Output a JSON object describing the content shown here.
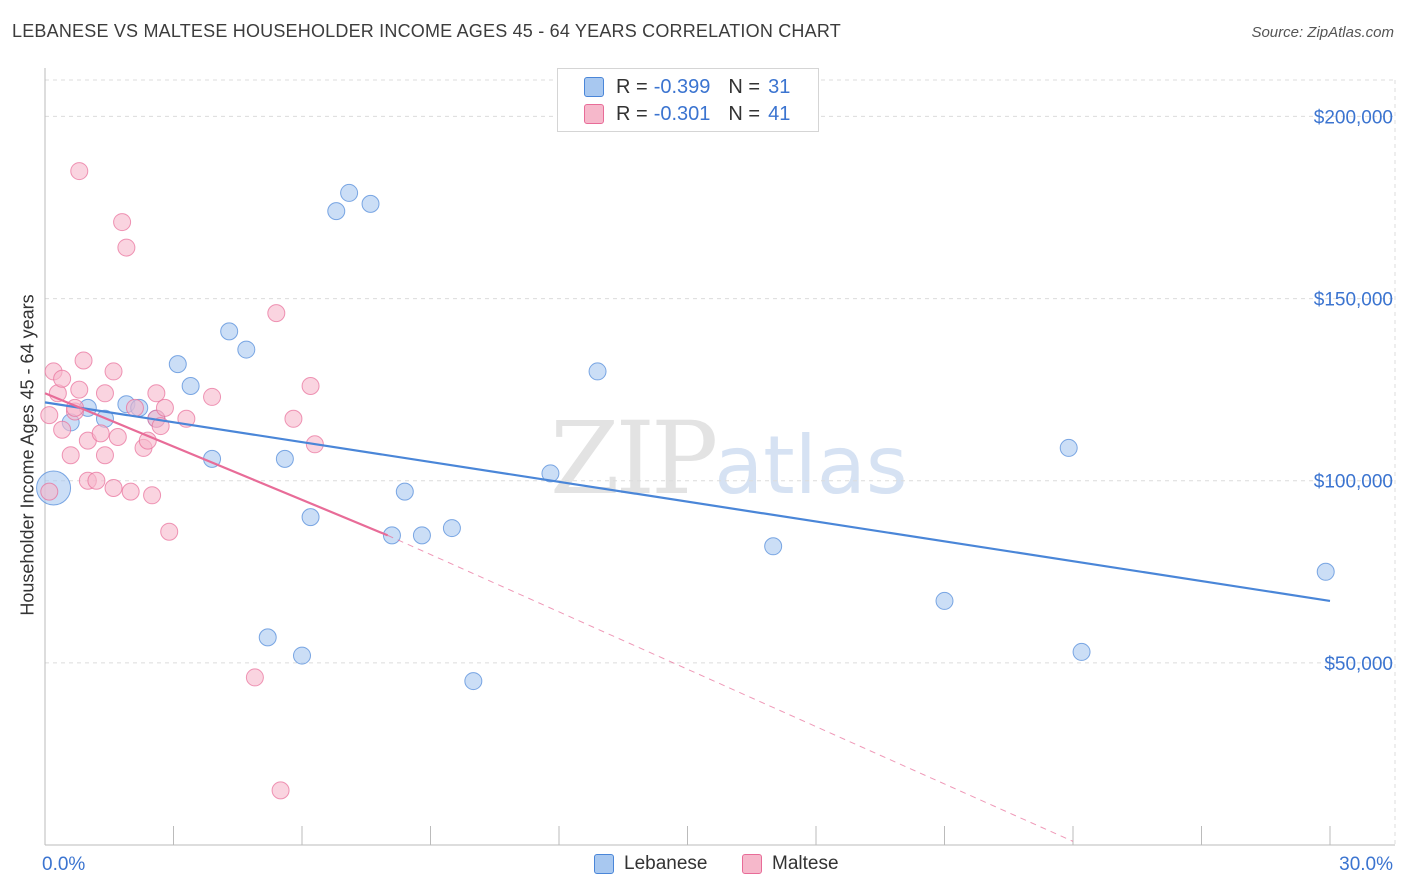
{
  "header": {
    "title": "LEBANESE VS MALTESE HOUSEHOLDER INCOME AGES 45 - 64 YEARS CORRELATION CHART",
    "source": "Source: ZipAtlas.com"
  },
  "watermark": {
    "zip": "ZIP",
    "atlas": "atlas"
  },
  "legend_top": [
    {
      "r_label": "R =",
      "r_value": "-0.399",
      "n_label": "N =",
      "n_value": "31",
      "color": "#a8c8f0"
    },
    {
      "r_label": "R =",
      "r_value": "-0.301",
      "n_label": "N =",
      "n_value": "41",
      "color": "#f6b8cb"
    }
  ],
  "legend_bottom": [
    {
      "label": "Lebanese",
      "color": "#a8c8f0"
    },
    {
      "label": "Maltese",
      "color": "#f6b8cb"
    }
  ],
  "chart_data": {
    "type": "scatter",
    "title": "LEBANESE VS MALTESE HOUSEHOLDER INCOME AGES 45 - 64 YEARS CORRELATION CHART",
    "xlabel": "",
    "ylabel": "Householder Income Ages 45 - 64 years",
    "xlim": [
      0,
      30
    ],
    "ylim": [
      0,
      210000
    ],
    "x_tick_labels": [
      "0.0%",
      "30.0%"
    ],
    "y_ticks": [
      50000,
      100000,
      150000,
      200000
    ],
    "y_tick_labels": [
      "$50,000",
      "$100,000",
      "$150,000",
      "$200,000"
    ],
    "grid": true,
    "legend_position": "top-center",
    "series": [
      {
        "name": "Lebanese",
        "color": "#4a86d8",
        "fill": "#a8c8f0",
        "trend": {
          "x": [
            0.0,
            30.0
          ],
          "y": [
            121500,
            67000
          ],
          "style": "solid"
        },
        "points": [
          {
            "x": 0.2,
            "y": 98000,
            "big": true
          },
          {
            "x": 0.6,
            "y": 116000
          },
          {
            "x": 1.0,
            "y": 120000
          },
          {
            "x": 1.4,
            "y": 117000
          },
          {
            "x": 1.9,
            "y": 121000
          },
          {
            "x": 2.2,
            "y": 120000
          },
          {
            "x": 2.6,
            "y": 117000
          },
          {
            "x": 3.1,
            "y": 132000
          },
          {
            "x": 3.4,
            "y": 126000
          },
          {
            "x": 3.9,
            "y": 106000
          },
          {
            "x": 4.3,
            "y": 141000
          },
          {
            "x": 4.7,
            "y": 136000
          },
          {
            "x": 5.2,
            "y": 57000
          },
          {
            "x": 5.6,
            "y": 106000
          },
          {
            "x": 6.0,
            "y": 52000
          },
          {
            "x": 6.2,
            "y": 90000
          },
          {
            "x": 6.8,
            "y": 174000
          },
          {
            "x": 7.1,
            "y": 179000
          },
          {
            "x": 7.6,
            "y": 176000
          },
          {
            "x": 8.1,
            "y": 85000
          },
          {
            "x": 8.4,
            "y": 97000
          },
          {
            "x": 8.8,
            "y": 85000
          },
          {
            "x": 9.5,
            "y": 87000
          },
          {
            "x": 10.0,
            "y": 45000
          },
          {
            "x": 11.8,
            "y": 102000
          },
          {
            "x": 12.9,
            "y": 130000
          },
          {
            "x": 17.0,
            "y": 82000
          },
          {
            "x": 21.0,
            "y": 67000
          },
          {
            "x": 23.9,
            "y": 109000
          },
          {
            "x": 24.2,
            "y": 53000
          },
          {
            "x": 29.9,
            "y": 75000
          }
        ]
      },
      {
        "name": "Maltese",
        "color": "#e86c98",
        "fill": "#f6b8cb",
        "trend": {
          "x": [
            0.0,
            8.0
          ],
          "y": [
            124000,
            85000
          ],
          "style": "solid"
        },
        "trend_extension": {
          "x": [
            8.0,
            24.0
          ],
          "y": [
            85000,
            1000
          ],
          "style": "dashed"
        },
        "points": [
          {
            "x": 0.1,
            "y": 97000
          },
          {
            "x": 0.1,
            "y": 118000
          },
          {
            "x": 0.2,
            "y": 130000
          },
          {
            "x": 0.3,
            "y": 124000
          },
          {
            "x": 0.4,
            "y": 128000
          },
          {
            "x": 0.4,
            "y": 114000
          },
          {
            "x": 0.6,
            "y": 107000
          },
          {
            "x": 0.7,
            "y": 119000
          },
          {
            "x": 0.7,
            "y": 120000
          },
          {
            "x": 0.8,
            "y": 125000
          },
          {
            "x": 0.8,
            "y": 185000
          },
          {
            "x": 0.9,
            "y": 133000
          },
          {
            "x": 1.0,
            "y": 111000
          },
          {
            "x": 1.0,
            "y": 100000
          },
          {
            "x": 1.2,
            "y": 100000
          },
          {
            "x": 1.3,
            "y": 113000
          },
          {
            "x": 1.4,
            "y": 107000
          },
          {
            "x": 1.4,
            "y": 124000
          },
          {
            "x": 1.6,
            "y": 98000
          },
          {
            "x": 1.6,
            "y": 130000
          },
          {
            "x": 1.7,
            "y": 112000
          },
          {
            "x": 1.8,
            "y": 171000
          },
          {
            "x": 1.9,
            "y": 164000
          },
          {
            "x": 2.0,
            "y": 97000
          },
          {
            "x": 2.1,
            "y": 120000
          },
          {
            "x": 2.3,
            "y": 109000
          },
          {
            "x": 2.4,
            "y": 111000
          },
          {
            "x": 2.5,
            "y": 96000
          },
          {
            "x": 2.6,
            "y": 117000
          },
          {
            "x": 2.6,
            "y": 124000
          },
          {
            "x": 2.7,
            "y": 115000
          },
          {
            "x": 2.8,
            "y": 120000
          },
          {
            "x": 2.9,
            "y": 86000
          },
          {
            "x": 3.3,
            "y": 117000
          },
          {
            "x": 3.9,
            "y": 123000
          },
          {
            "x": 4.9,
            "y": 46000
          },
          {
            "x": 5.4,
            "y": 146000
          },
          {
            "x": 5.5,
            "y": 15000
          },
          {
            "x": 5.8,
            "y": 117000
          },
          {
            "x": 6.2,
            "y": 126000
          },
          {
            "x": 6.3,
            "y": 110000
          }
        ]
      }
    ]
  }
}
